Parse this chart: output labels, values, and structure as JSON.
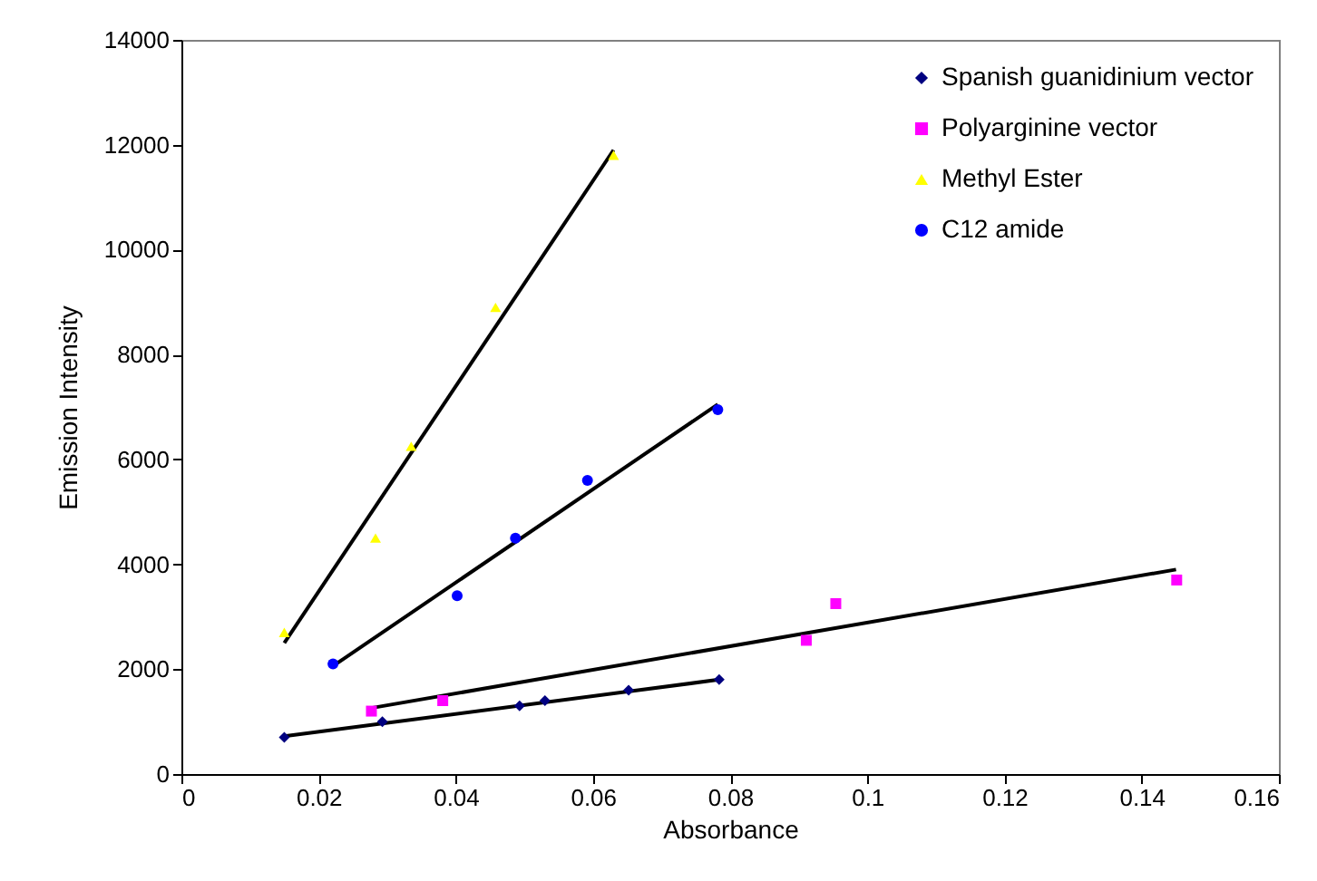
{
  "chart_data": {
    "type": "scatter",
    "xlabel": "Absorbance",
    "ylabel": "Emission Intensity",
    "xlim": [
      0,
      0.16
    ],
    "xticks": [
      0,
      0.02,
      0.04,
      0.06,
      0.08,
      0.1,
      0.12,
      0.14,
      0.16
    ],
    "ylim": [
      0,
      14000
    ],
    "yticks": [
      0,
      2000,
      4000,
      6000,
      8000,
      10000,
      12000,
      14000
    ],
    "grid": false,
    "legend": "top right",
    "series": [
      {
        "name": "Spanish guanidinium vector",
        "type": "scatter",
        "marker": "diamond",
        "color": "#000080",
        "x": [
          0.015,
          0.0293,
          0.0493,
          0.053,
          0.0652,
          0.0784
        ],
        "values": [
          700,
          1000,
          1300,
          1400,
          1600,
          1800
        ]
      },
      {
        "name": "Polyarginine vector",
        "type": "scatter",
        "marker": "square",
        "color": "#ff00ff",
        "x": [
          0.0277,
          0.0381,
          0.0911,
          0.0954,
          0.1451
        ],
        "values": [
          1200,
          1400,
          2550,
          3250,
          3700
        ]
      },
      {
        "name": "Methyl Ester",
        "type": "scatter",
        "marker": "triangle",
        "color": "#ffff00",
        "x": [
          0.015,
          0.0283,
          0.0335,
          0.0458,
          0.063
        ],
        "values": [
          2700,
          4500,
          6250,
          8900,
          11800
        ]
      },
      {
        "name": "C12 amide",
        "type": "scatter",
        "marker": "circle",
        "color": "#0000ff",
        "x": [
          0.0221,
          0.0402,
          0.0487,
          0.0592,
          0.0782
        ],
        "values": [
          2100,
          3400,
          4500,
          5600,
          6950
        ]
      },
      {
        "type": "line",
        "color": "#000000",
        "x": [
          0.015,
          0.0784
        ],
        "values": [
          720,
          1800
        ]
      },
      {
        "type": "line",
        "color": "#000000",
        "x": [
          0.0277,
          0.145
        ],
        "values": [
          1260,
          3900
        ]
      },
      {
        "type": "line",
        "color": "#000000",
        "x": [
          0.015,
          0.063
        ],
        "values": [
          2500,
          11900
        ]
      },
      {
        "type": "line",
        "color": "#000000",
        "x": [
          0.022,
          0.0782
        ],
        "values": [
          2050,
          7050
        ]
      }
    ]
  }
}
